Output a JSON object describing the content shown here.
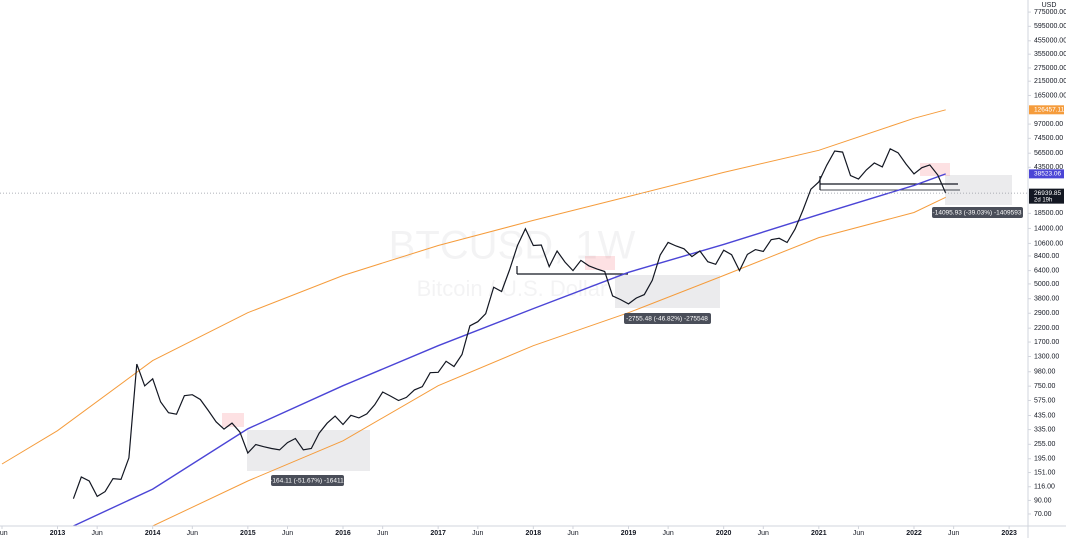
{
  "chart_data": {
    "type": "line",
    "title": "BTCUSD, 1W",
    "subtitle": "Bitcoin / U.S. Dollar",
    "currency": "USD",
    "log_scale": true,
    "xlim": [
      "2012-06",
      "2023-03"
    ],
    "ylim": [
      56,
      970000
    ],
    "xticks": [
      {
        "value": "2012-06",
        "label": "Jun"
      },
      {
        "value": "2013-01",
        "label": "2013"
      },
      {
        "value": "2013-06",
        "label": "Jun"
      },
      {
        "value": "2014-01",
        "label": "2014"
      },
      {
        "value": "2014-06",
        "label": "Jun"
      },
      {
        "value": "2015-01",
        "label": "2015"
      },
      {
        "value": "2015-06",
        "label": "Jun"
      },
      {
        "value": "2016-01",
        "label": "2016"
      },
      {
        "value": "2016-06",
        "label": "Jun"
      },
      {
        "value": "2017-01",
        "label": "2017"
      },
      {
        "value": "2017-06",
        "label": "Jun"
      },
      {
        "value": "2018-01",
        "label": "2018"
      },
      {
        "value": "2018-06",
        "label": "Jun"
      },
      {
        "value": "2019-01",
        "label": "2019"
      },
      {
        "value": "2019-06",
        "label": "Jun"
      },
      {
        "value": "2020-01",
        "label": "2020"
      },
      {
        "value": "2020-06",
        "label": "Jun"
      },
      {
        "value": "2021-01",
        "label": "2021"
      },
      {
        "value": "2021-06",
        "label": "Jun"
      },
      {
        "value": "2022-01",
        "label": "2022"
      },
      {
        "value": "2022-06",
        "label": "Jun"
      },
      {
        "value": "2023-01",
        "label": "2023"
      }
    ],
    "yticks": [
      {
        "value": 775000,
        "label": "775000.00"
      },
      {
        "value": 595000,
        "label": "595000.00"
      },
      {
        "value": 455000,
        "label": "455000.00"
      },
      {
        "value": 355000,
        "label": "355000.00"
      },
      {
        "value": 275000,
        "label": "275000.00"
      },
      {
        "value": 215000,
        "label": "215000.00"
      },
      {
        "value": 165000,
        "label": "165000.00"
      },
      {
        "value": 97000,
        "label": "97000.00"
      },
      {
        "value": 74500,
        "label": "74500.00"
      },
      {
        "value": 56500,
        "label": "56500.00"
      },
      {
        "value": 43500,
        "label": "43500.00"
      },
      {
        "value": 18500,
        "label": "18500.00"
      },
      {
        "value": 14000,
        "label": "14000.00"
      },
      {
        "value": 10600,
        "label": "10600.00"
      },
      {
        "value": 8400,
        "label": "8400.00"
      },
      {
        "value": 6400,
        "label": "6400.00"
      },
      {
        "value": 5000,
        "label": "5000.00"
      },
      {
        "value": 3800,
        "label": "3800.00"
      },
      {
        "value": 2900,
        "label": "2900.00"
      },
      {
        "value": 2200,
        "label": "2200.00"
      },
      {
        "value": 1700,
        "label": "1700.00"
      },
      {
        "value": 1300,
        "label": "1300.00"
      },
      {
        "value": 980,
        "label": "980.00"
      },
      {
        "value": 750,
        "label": "750.00"
      },
      {
        "value": 575,
        "label": "575.00"
      },
      {
        "value": 435,
        "label": "435.00"
      },
      {
        "value": 335,
        "label": "335.00"
      },
      {
        "value": 255,
        "label": "255.00"
      },
      {
        "value": 195,
        "label": "195.00"
      },
      {
        "value": 151,
        "label": "151.00"
      },
      {
        "value": 116,
        "label": "116.00"
      },
      {
        "value": 90,
        "label": "90.00"
      },
      {
        "value": 70,
        "label": "70.00"
      }
    ],
    "x": [
      "2013-03",
      "2013-04",
      "2013-05",
      "2013-06",
      "2013-07",
      "2013-08",
      "2013-09",
      "2013-10",
      "2013-11",
      "2013-12",
      "2014-01",
      "2014-02",
      "2014-03",
      "2014-04",
      "2014-05",
      "2014-06",
      "2014-07",
      "2014-08",
      "2014-09",
      "2014-10",
      "2014-11",
      "2014-12",
      "2015-01",
      "2015-02",
      "2015-03",
      "2015-04",
      "2015-05",
      "2015-06",
      "2015-07",
      "2015-08",
      "2015-09",
      "2015-10",
      "2015-11",
      "2015-12",
      "2016-01",
      "2016-02",
      "2016-03",
      "2016-04",
      "2016-05",
      "2016-06",
      "2016-07",
      "2016-08",
      "2016-09",
      "2016-10",
      "2016-11",
      "2016-12",
      "2017-01",
      "2017-02",
      "2017-03",
      "2017-04",
      "2017-05",
      "2017-06",
      "2017-07",
      "2017-08",
      "2017-09",
      "2017-10",
      "2017-11",
      "2017-12",
      "2018-01",
      "2018-02",
      "2018-03",
      "2018-04",
      "2018-05",
      "2018-06",
      "2018-07",
      "2018-08",
      "2018-09",
      "2018-10",
      "2018-11",
      "2018-12",
      "2019-01",
      "2019-02",
      "2019-03",
      "2019-04",
      "2019-05",
      "2019-06",
      "2019-07",
      "2019-08",
      "2019-09",
      "2019-10",
      "2019-11",
      "2019-12",
      "2020-01",
      "2020-02",
      "2020-03",
      "2020-04",
      "2020-05",
      "2020-06",
      "2020-07",
      "2020-08",
      "2020-09",
      "2020-10",
      "2020-11",
      "2020-12",
      "2021-01",
      "2021-02",
      "2021-03",
      "2021-04",
      "2021-05",
      "2021-06",
      "2021-07",
      "2021-08",
      "2021-09",
      "2021-10",
      "2021-11",
      "2021-12",
      "2022-01",
      "2022-02",
      "2022-03",
      "2022-04",
      "2022-05"
    ],
    "series": [
      {
        "color": "#131722",
        "values": [
          93,
          139,
          129,
          97,
          106,
          135,
          133,
          198,
          1130,
          754,
          860,
          560,
          458,
          446,
          628,
          640,
          585,
          478,
          387,
          338,
          378,
          320,
          217,
          254,
          244,
          236,
          230,
          263,
          284,
          230,
          236,
          314,
          377,
          430,
          368,
          437,
          416,
          448,
          531,
          673,
          624,
          575,
          609,
          700,
          742,
          963,
          970,
          1190,
          1080,
          1350,
          2300,
          2480,
          2875,
          4700,
          4340,
          6470,
          10200,
          13900,
          10200,
          10300,
          6900,
          9200,
          7500,
          6400,
          7730,
          7000,
          6600,
          6300,
          4000,
          3740,
          3450,
          3850,
          4100,
          5350,
          8550,
          10800,
          10100,
          9600,
          8300,
          9200,
          7550,
          7200,
          9350,
          8600,
          6400,
          8650,
          9450,
          9140,
          11350,
          11650,
          10780,
          13800,
          19700,
          29000,
          33100,
          45200,
          58900,
          57700,
          37300,
          35000,
          41500,
          47100,
          43800,
          61300,
          57000,
          46300,
          38500,
          43200,
          45500,
          37700,
          26939.85
        ]
      }
    ],
    "countdown": "2d 19h",
    "bands": [
      {
        "color": "#f59c3c",
        "x": [
          "2012-06",
          "2013-01",
          "2014-01",
          "2015-01",
          "2016-01",
          "2017-01",
          "2018-01",
          "2019-01",
          "2020-01",
          "2021-01",
          "2022-01",
          "2022-05"
        ],
        "values": [
          177,
          328,
          1204,
          2933,
          5840,
          10200,
          16250,
          25300,
          39600,
          59600,
          108000,
          126457.11
        ]
      },
      {
        "color": "#4b45d6",
        "x": [
          "2013-03",
          "2014-01",
          "2015-01",
          "2016-01",
          "2017-01",
          "2018-01",
          "2019-01",
          "2020-01",
          "2021-01",
          "2022-01",
          "2022-05"
        ],
        "values": [
          56,
          111,
          340,
          756,
          1590,
          3160,
          6200,
          10400,
          18100,
          31100,
          38523.06
        ]
      },
      {
        "color": "#f59c3c",
        "x": [
          "2014-01",
          "2015-01",
          "2016-01",
          "2017-01",
          "2018-01",
          "2019-01",
          "2020-01",
          "2021-01",
          "2022-01",
          "2022-05"
        ],
        "values": [
          56,
          129,
          272,
          756,
          1590,
          2930,
          5840,
          11800,
          18800,
          24949
        ]
      }
    ],
    "measurements": [
      "-164.11 (-51.67%) -16411",
      "-2755.48 (-46.82%) -275548",
      "-14095.93 (-39.03%) -1409593"
    ]
  }
}
